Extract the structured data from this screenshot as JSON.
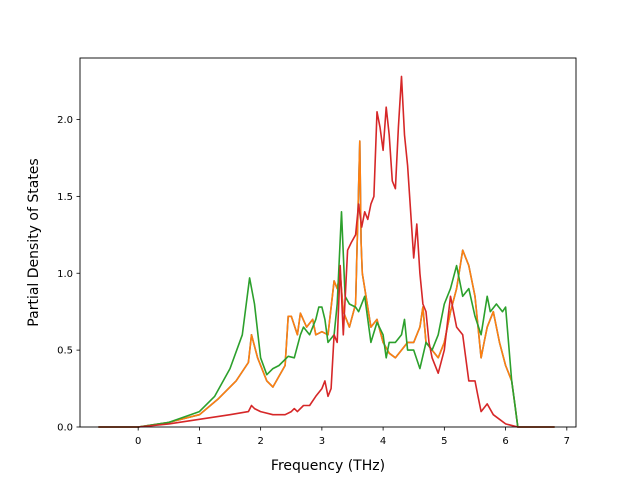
{
  "chart_data": {
    "type": "line",
    "xlabel": "Frequency (THz)",
    "ylabel": "Partial Density of States",
    "xlim": [
      -0.95,
      7.15
    ],
    "ylim": [
      0.0,
      2.4
    ],
    "x_ticks": [
      0,
      1,
      2,
      3,
      4,
      5,
      6,
      7
    ],
    "x_tick_labels": [
      "0",
      "1",
      "2",
      "3",
      "4",
      "5",
      "6",
      "7"
    ],
    "y_ticks": [
      0.0,
      0.5,
      1.0,
      1.5,
      2.0
    ],
    "y_tick_labels": [
      "0.0",
      "0.5",
      "1.0",
      "1.5",
      "2.0"
    ],
    "grid": false,
    "legend": "none",
    "series": [
      {
        "color": "#1f77b4",
        "x": [
          -0.65,
          0.0,
          0.5,
          1.0,
          1.3,
          1.6,
          1.8,
          1.85,
          1.95,
          2.1,
          2.2,
          2.4,
          2.45,
          2.5,
          2.6,
          2.65,
          2.75,
          2.85,
          2.9,
          3.0,
          3.1,
          3.2,
          3.25,
          3.3,
          3.35,
          3.45,
          3.55,
          3.62,
          3.64,
          3.66,
          3.72,
          3.8,
          3.9,
          4.0,
          4.1,
          4.2,
          4.3,
          4.4,
          4.5,
          4.6,
          4.65,
          4.7,
          4.8,
          4.9,
          5.0,
          5.1,
          5.2,
          5.3,
          5.4,
          5.5,
          5.6,
          5.65,
          5.7,
          5.8,
          5.9,
          6.0,
          6.1,
          6.15,
          6.2,
          6.8
        ],
        "y": [
          0.0,
          0.0,
          0.03,
          0.08,
          0.18,
          0.3,
          0.42,
          0.6,
          0.45,
          0.3,
          0.26,
          0.4,
          0.72,
          0.72,
          0.6,
          0.74,
          0.65,
          0.7,
          0.6,
          0.62,
          0.6,
          0.95,
          0.9,
          1.0,
          0.75,
          0.65,
          0.8,
          1.86,
          1.2,
          1.0,
          0.85,
          0.65,
          0.7,
          0.55,
          0.48,
          0.45,
          0.5,
          0.55,
          0.55,
          0.65,
          0.78,
          0.55,
          0.5,
          0.45,
          0.55,
          0.75,
          0.9,
          1.15,
          1.05,
          0.85,
          0.45,
          0.55,
          0.65,
          0.75,
          0.55,
          0.4,
          0.3,
          0.15,
          0.0,
          0.0
        ]
      },
      {
        "color": "#ff7f0e",
        "x": [
          -0.65,
          0.0,
          0.5,
          1.0,
          1.3,
          1.6,
          1.8,
          1.85,
          1.95,
          2.1,
          2.2,
          2.4,
          2.45,
          2.5,
          2.6,
          2.65,
          2.75,
          2.85,
          2.9,
          3.0,
          3.1,
          3.2,
          3.25,
          3.3,
          3.35,
          3.45,
          3.55,
          3.62,
          3.64,
          3.66,
          3.72,
          3.8,
          3.9,
          4.0,
          4.1,
          4.2,
          4.3,
          4.4,
          4.5,
          4.6,
          4.65,
          4.7,
          4.8,
          4.9,
          5.0,
          5.1,
          5.2,
          5.3,
          5.4,
          5.5,
          5.6,
          5.65,
          5.7,
          5.8,
          5.9,
          6.0,
          6.1,
          6.15,
          6.2,
          6.8
        ],
        "y": [
          0.0,
          0.0,
          0.03,
          0.08,
          0.18,
          0.3,
          0.42,
          0.6,
          0.45,
          0.3,
          0.26,
          0.4,
          0.72,
          0.72,
          0.6,
          0.74,
          0.65,
          0.7,
          0.6,
          0.62,
          0.6,
          0.95,
          0.9,
          1.0,
          0.75,
          0.65,
          0.8,
          1.86,
          1.2,
          1.0,
          0.85,
          0.65,
          0.7,
          0.55,
          0.48,
          0.45,
          0.5,
          0.55,
          0.55,
          0.65,
          0.78,
          0.55,
          0.5,
          0.45,
          0.55,
          0.75,
          0.9,
          1.15,
          1.05,
          0.85,
          0.45,
          0.55,
          0.65,
          0.75,
          0.55,
          0.4,
          0.3,
          0.15,
          0.0,
          0.0
        ]
      },
      {
        "color": "#2ca02c",
        "x": [
          -0.65,
          0.0,
          0.5,
          1.0,
          1.25,
          1.5,
          1.7,
          1.82,
          1.9,
          2.0,
          2.1,
          2.2,
          2.3,
          2.45,
          2.55,
          2.65,
          2.7,
          2.8,
          2.9,
          2.95,
          3.0,
          3.05,
          3.1,
          3.2,
          3.25,
          3.32,
          3.38,
          3.45,
          3.55,
          3.6,
          3.7,
          3.8,
          3.9,
          4.0,
          4.05,
          4.1,
          4.2,
          4.3,
          4.35,
          4.4,
          4.5,
          4.6,
          4.7,
          4.8,
          4.9,
          5.0,
          5.1,
          5.2,
          5.3,
          5.4,
          5.5,
          5.6,
          5.7,
          5.75,
          5.85,
          5.95,
          6.0,
          6.1,
          6.15,
          6.2,
          6.8
        ],
        "y": [
          0.0,
          0.0,
          0.03,
          0.1,
          0.2,
          0.38,
          0.6,
          0.97,
          0.8,
          0.45,
          0.34,
          0.38,
          0.4,
          0.46,
          0.45,
          0.6,
          0.65,
          0.6,
          0.7,
          0.78,
          0.78,
          0.7,
          0.55,
          0.6,
          0.8,
          1.4,
          0.85,
          0.8,
          0.78,
          0.75,
          0.85,
          0.55,
          0.68,
          0.6,
          0.45,
          0.55,
          0.55,
          0.6,
          0.7,
          0.5,
          0.5,
          0.38,
          0.55,
          0.5,
          0.6,
          0.8,
          0.9,
          1.05,
          0.85,
          0.9,
          0.72,
          0.6,
          0.85,
          0.75,
          0.8,
          0.75,
          0.78,
          0.3,
          0.15,
          0.0,
          0.0
        ]
      },
      {
        "color": "#d62728",
        "x": [
          -0.65,
          0.0,
          0.5,
          1.0,
          1.5,
          1.8,
          1.85,
          1.9,
          2.0,
          2.2,
          2.4,
          2.5,
          2.55,
          2.6,
          2.7,
          2.8,
          2.9,
          3.0,
          3.05,
          3.1,
          3.15,
          3.2,
          3.25,
          3.3,
          3.35,
          3.42,
          3.48,
          3.55,
          3.6,
          3.65,
          3.7,
          3.75,
          3.8,
          3.85,
          3.9,
          3.95,
          4.0,
          4.05,
          4.1,
          4.15,
          4.2,
          4.25,
          4.3,
          4.35,
          4.4,
          4.5,
          4.55,
          4.6,
          4.65,
          4.7,
          4.75,
          4.8,
          4.9,
          5.0,
          5.1,
          5.2,
          5.3,
          5.4,
          5.5,
          5.55,
          5.6,
          5.7,
          5.8,
          5.9,
          6.0,
          6.2,
          6.8
        ],
        "y": [
          0.0,
          0.0,
          0.02,
          0.05,
          0.08,
          0.1,
          0.14,
          0.12,
          0.1,
          0.08,
          0.08,
          0.1,
          0.12,
          0.1,
          0.14,
          0.14,
          0.2,
          0.25,
          0.3,
          0.2,
          0.25,
          0.6,
          0.55,
          1.05,
          0.6,
          1.15,
          1.2,
          1.25,
          1.45,
          1.3,
          1.4,
          1.35,
          1.45,
          1.5,
          2.05,
          1.95,
          1.8,
          2.08,
          1.9,
          1.6,
          1.55,
          1.95,
          2.28,
          1.9,
          1.7,
          1.1,
          1.32,
          1.0,
          0.8,
          0.75,
          0.55,
          0.45,
          0.35,
          0.5,
          0.85,
          0.65,
          0.6,
          0.3,
          0.3,
          0.2,
          0.1,
          0.15,
          0.08,
          0.05,
          0.02,
          0.0,
          0.0
        ]
      }
    ]
  }
}
